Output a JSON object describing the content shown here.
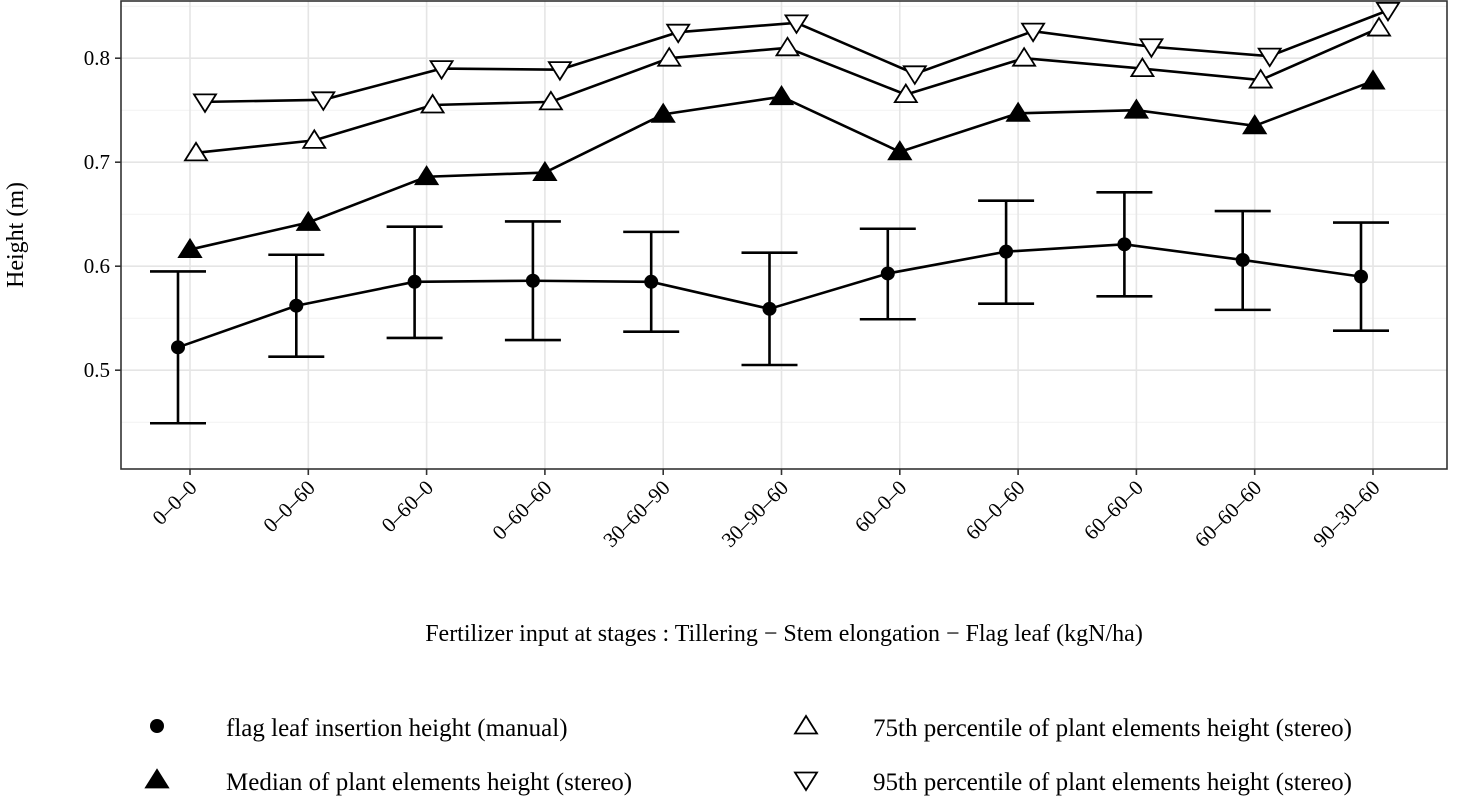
{
  "chart_data": {
    "type": "line",
    "title": "",
    "xlabel": "Fertilizer input at stages : Tillering − Stem elongation − Flag leaf (kgN/ha)",
    "ylabel": "Height (m)",
    "categories": [
      "0–0–0",
      "0–0–60",
      "0–60–0",
      "0–60–60",
      "30–60–90",
      "30–90–60",
      "60–0–0",
      "60–0–60",
      "60–60–0",
      "60–60–60",
      "90–30–60"
    ],
    "ylim": [
      0.405,
      0.855
    ],
    "yticks": [
      0.5,
      0.6,
      0.7,
      0.8
    ],
    "ytick_labels": [
      "0.5",
      "0.6",
      "0.7",
      "0.8"
    ],
    "grid": true,
    "legend_position": "bottom",
    "series": [
      {
        "name": "flag leaf insertion height (manual)",
        "marker": "circle",
        "values": [
          0.522,
          0.562,
          0.585,
          0.586,
          0.585,
          0.559,
          0.593,
          0.614,
          0.621,
          0.606,
          0.59
        ],
        "error_low": [
          0.449,
          0.513,
          0.531,
          0.529,
          0.537,
          0.505,
          0.549,
          0.564,
          0.571,
          0.558,
          0.538
        ],
        "error_high": [
          0.595,
          0.611,
          0.638,
          0.643,
          0.633,
          0.613,
          0.636,
          0.663,
          0.671,
          0.653,
          0.642
        ]
      },
      {
        "name": "Median of plant elements height (stereo)",
        "marker": "triangle-up-filled",
        "values": [
          0.616,
          0.642,
          0.686,
          0.69,
          0.746,
          0.763,
          0.71,
          0.747,
          0.75,
          0.735,
          0.778
        ]
      },
      {
        "name": "75th percentile of plant elements height (stereo)",
        "marker": "triangle-up-open",
        "values": [
          0.709,
          0.721,
          0.755,
          0.758,
          0.8,
          0.81,
          0.765,
          0.8,
          0.79,
          0.779,
          0.829
        ]
      },
      {
        "name": "95th percentile of plant elements height (stereo)",
        "marker": "triangle-down-open",
        "values": [
          0.758,
          0.76,
          0.79,
          0.789,
          0.825,
          0.834,
          0.785,
          0.826,
          0.811,
          0.802,
          0.846
        ]
      }
    ]
  }
}
